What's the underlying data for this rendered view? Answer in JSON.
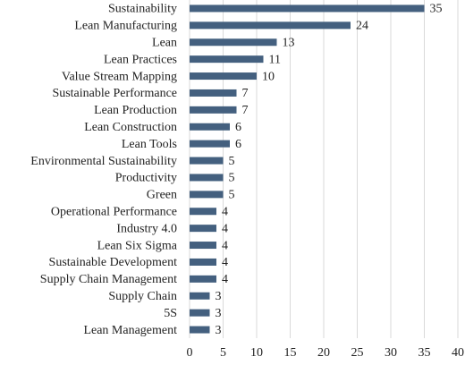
{
  "chart_data": {
    "type": "hbar",
    "categories": [
      "Sustainability",
      "Lean Manufacturing",
      "Lean",
      "Lean Practices",
      "Value Stream Mapping",
      "Sustainable Performance",
      "Lean Production",
      "Lean Construction",
      "Lean Tools",
      "Environmental Sustainability",
      "Productivity",
      "Green",
      "Operational Performance",
      "Industry 4.0",
      "Lean Six Sigma",
      "Sustainable Development",
      "Supply Chain Management",
      "Supply Chain",
      "5S",
      "Lean Management"
    ],
    "values": [
      35,
      24,
      13,
      11,
      10,
      7,
      7,
      6,
      6,
      5,
      5,
      5,
      4,
      4,
      4,
      4,
      4,
      3,
      3,
      3
    ],
    "color": "#44607f",
    "xlim": [
      0,
      40
    ],
    "xticks": [
      0,
      5,
      10,
      15,
      20,
      25,
      30,
      35,
      40
    ],
    "grid": true
  }
}
